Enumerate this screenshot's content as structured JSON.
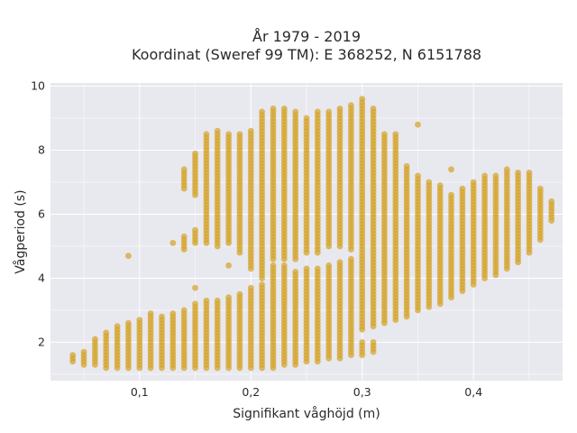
{
  "chart_data": {
    "type": "scatter",
    "title_lines": [
      "År 1979 - 2019",
      "Koordinat (Sweref 99 TM): E 368252, N 6151788"
    ],
    "xlabel": "Signifikant våghöjd (m)",
    "ylabel": "Vågperiod (s)",
    "xlim": [
      0.02,
      0.48
    ],
    "ylim": [
      0.8,
      10.1
    ],
    "x_ticks": [
      {
        "value": 0.1,
        "label": "0,1"
      },
      {
        "value": 0.2,
        "label": "0,2"
      },
      {
        "value": 0.3,
        "label": "0,3"
      },
      {
        "value": 0.4,
        "label": "0,4"
      }
    ],
    "y_ticks": [
      {
        "value": 2,
        "label": "2"
      },
      {
        "value": 4,
        "label": "4"
      },
      {
        "value": 6,
        "label": "6"
      },
      {
        "value": 8,
        "label": "8"
      },
      {
        "value": 10,
        "label": "10"
      }
    ],
    "grid": true,
    "marker_color": "#d4a32a",
    "background": "#e8e8ef",
    "x_step": 0.01,
    "column_bands": [
      {
        "x": 0.04,
        "ranges": [
          [
            1.35,
            1.55
          ]
        ]
      },
      {
        "x": 0.05,
        "ranges": [
          [
            1.3,
            1.7
          ]
        ]
      },
      {
        "x": 0.06,
        "ranges": [
          [
            1.25,
            2.05
          ]
        ]
      },
      {
        "x": 0.07,
        "ranges": [
          [
            1.2,
            2.25
          ]
        ]
      },
      {
        "x": 0.08,
        "ranges": [
          [
            1.2,
            2.45
          ]
        ]
      },
      {
        "x": 0.09,
        "ranges": [
          [
            1.15,
            2.55
          ],
          [
            4.65,
            4.65
          ]
        ]
      },
      {
        "x": 0.1,
        "ranges": [
          [
            1.15,
            2.65
          ]
        ]
      },
      {
        "x": 0.11,
        "ranges": [
          [
            1.15,
            2.85
          ]
        ]
      },
      {
        "x": 0.12,
        "ranges": [
          [
            1.15,
            2.75
          ]
        ]
      },
      {
        "x": 0.13,
        "ranges": [
          [
            1.15,
            2.85
          ],
          [
            5.1,
            5.1
          ]
        ]
      },
      {
        "x": 0.14,
        "ranges": [
          [
            1.15,
            3.0
          ],
          [
            4.9,
            5.3
          ],
          [
            6.8,
            7.4
          ]
        ]
      },
      {
        "x": 0.15,
        "ranges": [
          [
            1.15,
            3.15
          ],
          [
            3.65,
            3.65
          ],
          [
            5.1,
            5.5
          ],
          [
            6.6,
            7.9
          ]
        ]
      },
      {
        "x": 0.16,
        "ranges": [
          [
            1.15,
            3.25
          ],
          [
            5.1,
            8.5
          ]
        ]
      },
      {
        "x": 0.17,
        "ranges": [
          [
            1.15,
            3.3
          ],
          [
            5.0,
            8.6
          ]
        ]
      },
      {
        "x": 0.18,
        "ranges": [
          [
            1.15,
            3.4
          ],
          [
            4.4,
            4.4
          ],
          [
            5.1,
            8.5
          ]
        ]
      },
      {
        "x": 0.19,
        "ranges": [
          [
            1.15,
            3.5
          ],
          [
            4.8,
            8.5
          ]
        ]
      },
      {
        "x": 0.2,
        "ranges": [
          [
            1.15,
            3.7
          ],
          [
            4.3,
            8.6
          ]
        ]
      },
      {
        "x": 0.21,
        "ranges": [
          [
            1.15,
            3.8
          ],
          [
            4.0,
            9.2
          ]
        ]
      },
      {
        "x": 0.22,
        "ranges": [
          [
            1.2,
            4.4
          ],
          [
            4.6,
            9.3
          ]
        ]
      },
      {
        "x": 0.23,
        "ranges": [
          [
            1.25,
            4.4
          ],
          [
            4.6,
            9.3
          ]
        ]
      },
      {
        "x": 0.24,
        "ranges": [
          [
            1.3,
            4.2
          ],
          [
            4.6,
            9.2
          ]
        ]
      },
      {
        "x": 0.25,
        "ranges": [
          [
            1.35,
            4.3
          ],
          [
            4.8,
            9.0
          ]
        ]
      },
      {
        "x": 0.26,
        "ranges": [
          [
            1.4,
            4.3
          ],
          [
            4.8,
            9.2
          ]
        ]
      },
      {
        "x": 0.27,
        "ranges": [
          [
            1.45,
            4.4
          ],
          [
            5.0,
            9.2
          ]
        ]
      },
      {
        "x": 0.28,
        "ranges": [
          [
            1.5,
            4.5
          ],
          [
            5.0,
            9.3
          ]
        ]
      },
      {
        "x": 0.29,
        "ranges": [
          [
            1.55,
            4.6
          ],
          [
            4.9,
            9.4
          ]
        ]
      },
      {
        "x": 0.3,
        "ranges": [
          [
            1.6,
            2.0
          ],
          [
            2.4,
            9.6
          ]
        ]
      },
      {
        "x": 0.31,
        "ranges": [
          [
            1.65,
            2.0
          ],
          [
            2.5,
            9.3
          ]
        ]
      },
      {
        "x": 0.32,
        "ranges": [
          [
            2.6,
            8.5
          ]
        ]
      },
      {
        "x": 0.33,
        "ranges": [
          [
            2.7,
            8.5
          ]
        ]
      },
      {
        "x": 0.34,
        "ranges": [
          [
            2.8,
            7.5
          ]
        ]
      },
      {
        "x": 0.35,
        "ranges": [
          [
            3.0,
            7.2
          ],
          [
            8.8,
            8.8
          ]
        ]
      },
      {
        "x": 0.36,
        "ranges": [
          [
            3.1,
            7.0
          ]
        ]
      },
      {
        "x": 0.37,
        "ranges": [
          [
            3.2,
            6.9
          ]
        ]
      },
      {
        "x": 0.38,
        "ranges": [
          [
            3.4,
            6.6
          ],
          [
            7.35,
            7.35
          ]
        ]
      },
      {
        "x": 0.39,
        "ranges": [
          [
            3.6,
            6.8
          ]
        ]
      },
      {
        "x": 0.4,
        "ranges": [
          [
            3.8,
            7.0
          ]
        ]
      },
      {
        "x": 0.41,
        "ranges": [
          [
            4.0,
            7.2
          ]
        ]
      },
      {
        "x": 0.42,
        "ranges": [
          [
            4.1,
            7.2
          ]
        ]
      },
      {
        "x": 0.43,
        "ranges": [
          [
            4.3,
            7.4
          ]
        ]
      },
      {
        "x": 0.44,
        "ranges": [
          [
            4.5,
            7.3
          ]
        ]
      },
      {
        "x": 0.45,
        "ranges": [
          [
            4.8,
            7.3
          ]
        ]
      },
      {
        "x": 0.46,
        "ranges": [
          [
            5.2,
            6.8
          ]
        ]
      },
      {
        "x": 0.47,
        "ranges": [
          [
            5.8,
            6.4
          ]
        ]
      }
    ]
  }
}
